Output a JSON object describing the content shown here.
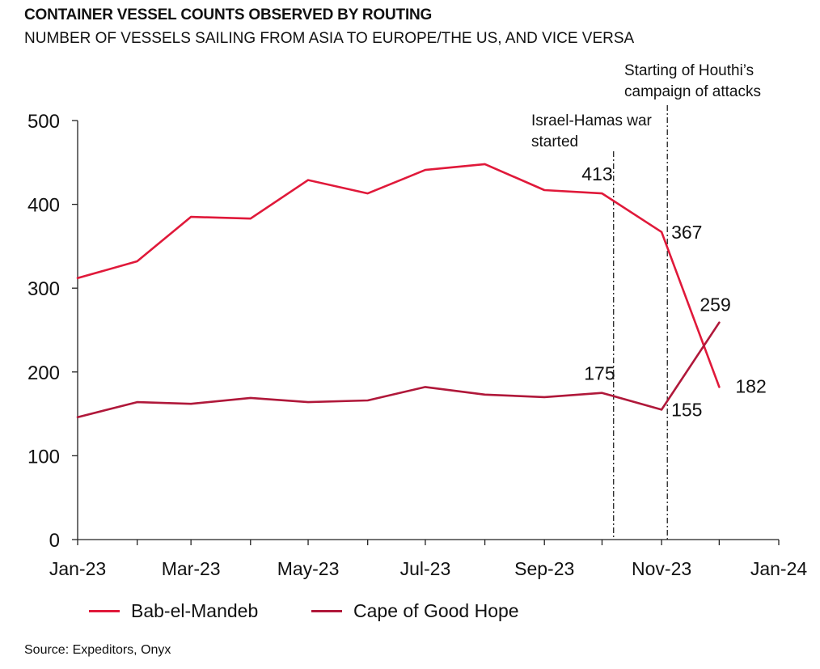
{
  "header": {
    "title": "CONTAINER VESSEL COUNTS OBSERVED BY ROUTING",
    "subtitle": "NUMBER OF VESSELS SAILING FROM ASIA TO EUROPE/THE US, AND VICE VERSA"
  },
  "footer": {
    "source": "Source: Expeditors, Onyx"
  },
  "colors": {
    "bab_el_mandeb": "#e0193a",
    "cape_of_good_hope": "#b0183a",
    "axis": "#222222",
    "annotation_line": "#222222"
  },
  "chart_data": {
    "type": "line",
    "title": "CONTAINER VESSEL COUNTS OBSERVED BY ROUTING",
    "subtitle": "NUMBER OF VESSELS SAILING FROM ASIA TO EUROPE/THE US, AND VICE VERSA",
    "x_dates": [
      "2023-01-01",
      "2023-02-01",
      "2023-03-01",
      "2023-04-01",
      "2023-05-01",
      "2023-06-01",
      "2023-07-01",
      "2023-08-01",
      "2023-09-01",
      "2023-10-01",
      "2023-11-01",
      "2023-12-01"
    ],
    "x_ticks": [
      {
        "date": "2023-01-01",
        "label": "Jan-23"
      },
      {
        "date": "2023-03-01",
        "label": "Mar-23"
      },
      {
        "date": "2023-05-01",
        "label": "May-23"
      },
      {
        "date": "2023-07-01",
        "label": "Jul-23"
      },
      {
        "date": "2023-09-01",
        "label": "Sep-23"
      },
      {
        "date": "2023-11-01",
        "label": "Nov-23"
      },
      {
        "date": "2024-01-01",
        "label": "Jan-24"
      }
    ],
    "xlim": [
      "2023-01-01",
      "2024-01-01"
    ],
    "ylim": [
      0,
      500
    ],
    "y_ticks": [
      0,
      100,
      200,
      300,
      400,
      500
    ],
    "grid": false,
    "legend_position": "bottom",
    "series": [
      {
        "name": "Bab-el-Mandeb",
        "color": "#e0193a",
        "values": [
          312,
          332,
          385,
          383,
          429,
          413,
          441,
          448,
          417,
          413,
          367,
          182
        ]
      },
      {
        "name": "Cape of Good Hope",
        "color": "#b0183a",
        "values": [
          146,
          164,
          162,
          169,
          164,
          166,
          182,
          173,
          170,
          175,
          155,
          259
        ]
      }
    ],
    "data_labels": [
      {
        "series": 0,
        "index": 9,
        "text": "413"
      },
      {
        "series": 0,
        "index": 10,
        "text": "367"
      },
      {
        "series": 0,
        "index": 11,
        "text": "182"
      },
      {
        "series": 1,
        "index": 9,
        "text": "175"
      },
      {
        "series": 1,
        "index": 10,
        "text": "155"
      },
      {
        "series": 1,
        "index": 11,
        "text": "259"
      }
    ],
    "annotations": [
      {
        "date": "2023-10-07",
        "text_lines": [
          "Israel-Hamas war",
          "started"
        ]
      },
      {
        "date": "2023-11-04",
        "text_lines": [
          "Starting of Houthi’s",
          "campaign of attacks"
        ]
      }
    ]
  }
}
